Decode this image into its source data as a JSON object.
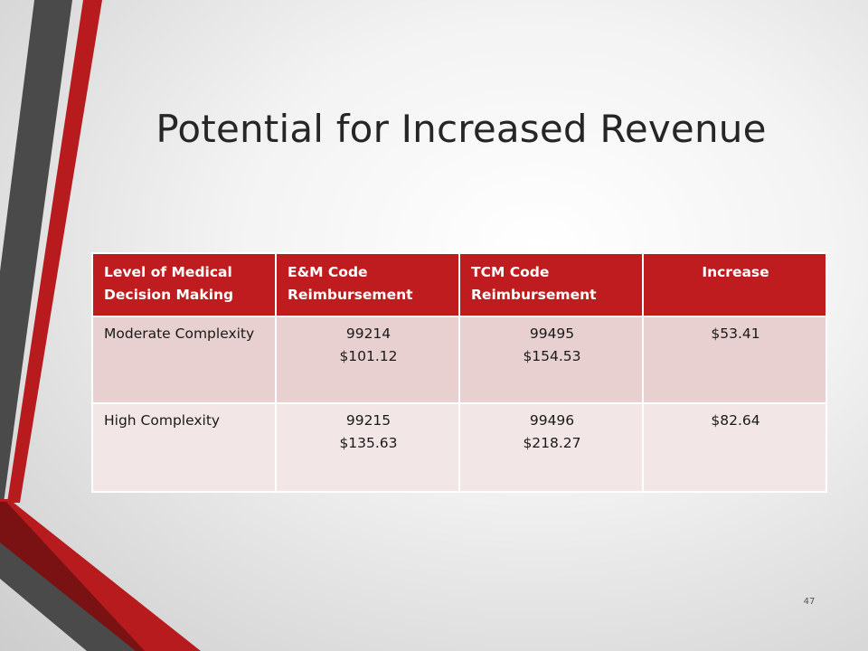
{
  "slide": {
    "title": "Potential for Increased Revenue",
    "page_number": "47",
    "colors": {
      "accent_red": "#be1c1e",
      "dark_gray": "#4a4a4a",
      "row_odd": "#e8cfd0",
      "row_even": "#f3e6e6"
    }
  },
  "table": {
    "headers": [
      "Level of Medical Decision Making",
      "E&M Code Reimbursement",
      "TCM Code Reimbursement",
      "Increase"
    ],
    "rows": [
      {
        "level": "Moderate Complexity",
        "em_code": "99214",
        "em_amount": "$101.12",
        "tcm_code": "99495",
        "tcm_amount": "$154.53",
        "increase": "$53.41"
      },
      {
        "level": "High Complexity",
        "em_code": "99215",
        "em_amount": "$135.63",
        "tcm_code": "99496",
        "tcm_amount": "$218.27",
        "increase": "$82.64"
      }
    ]
  }
}
